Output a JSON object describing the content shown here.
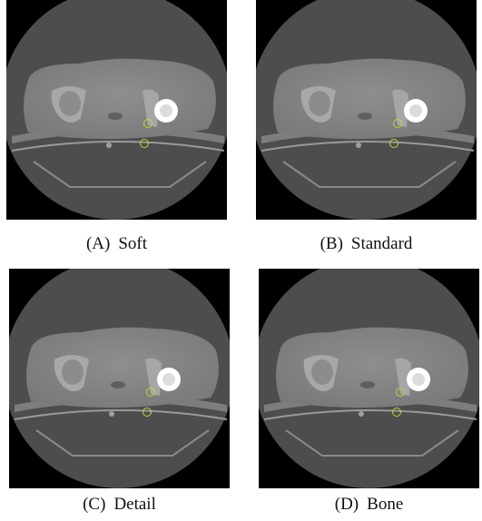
{
  "panels": [
    {
      "label": "(A)",
      "name": "Soft"
    },
    {
      "label": "(B)",
      "name": "Standard"
    },
    {
      "label": "(C)",
      "name": "Detail"
    },
    {
      "label": "(D)",
      "name": "Bone"
    }
  ]
}
